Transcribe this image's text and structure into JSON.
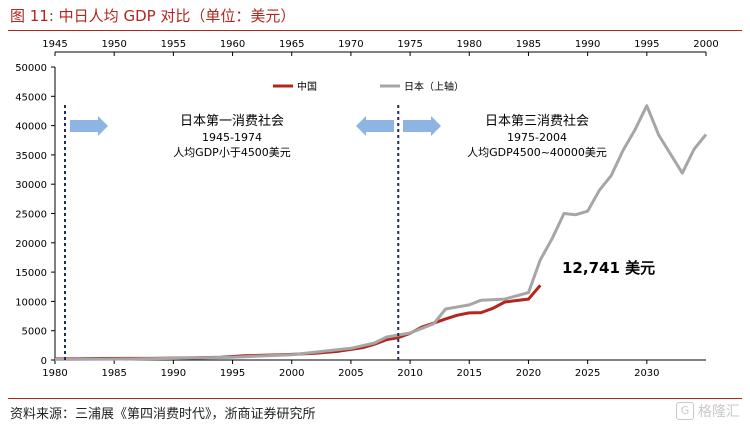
{
  "figure_title": "图 11:   中日人均 GDP 对比（单位：美元）",
  "source": "资料来源：三浦展《第四消费时代》，浙商证券研究所",
  "watermark": {
    "icon": "G",
    "text": "格隆汇"
  },
  "colors": {
    "china": "#b3261e",
    "japan": "#a6a6a6",
    "accent": "#b3261e",
    "arrow": "#8eb4e3",
    "divider": "#1f2a6b"
  },
  "chart_data": {
    "type": "line",
    "title": "",
    "bottom_axis": {
      "min": 1980,
      "max": 2035,
      "ticks": [
        1980,
        1985,
        1990,
        1995,
        2000,
        2005,
        2010,
        2015,
        2020,
        2025,
        2030
      ]
    },
    "top_axis": {
      "min": 1945,
      "max": 2000,
      "ticks": [
        1945,
        1950,
        1955,
        1960,
        1965,
        1970,
        1975,
        1980,
        1985,
        1990,
        1995,
        2000
      ]
    },
    "y_axis": {
      "min": 0,
      "max": 50000,
      "ticks": [
        0,
        5000,
        10000,
        15000,
        20000,
        25000,
        30000,
        35000,
        40000,
        45000,
        50000
      ]
    },
    "legend": {
      "position": "top-center"
    },
    "series": [
      {
        "name": "中国",
        "axis": "bottom",
        "x": [
          1980,
          1982,
          1984,
          1986,
          1988,
          1990,
          1992,
          1994,
          1996,
          1998,
          2000,
          2002,
          2004,
          2006,
          2007,
          2008,
          2009,
          2010,
          2011,
          2012,
          2013,
          2014,
          2015,
          2016,
          2017,
          2018,
          2019,
          2020,
          2021
        ],
        "y": [
          195,
          205,
          250,
          280,
          280,
          320,
          370,
          470,
          710,
          830,
          960,
          1150,
          1500,
          2100,
          2700,
          3470,
          3830,
          4550,
          5610,
          6300,
          7020,
          7650,
          8030,
          8090,
          8820,
          9900,
          10150,
          10400,
          12741
        ]
      },
      {
        "name": "日本（上轴）",
        "axis": "top",
        "x": [
          1945,
          1950,
          1955,
          1960,
          1965,
          1970,
          1972,
          1973,
          1975,
          1977,
          1978,
          1980,
          1981,
          1983,
          1985,
          1986,
          1987,
          1988,
          1989,
          1990,
          1991,
          1992,
          1993,
          1994,
          1995,
          1996,
          1998,
          1999,
          2000
        ],
        "y": [
          100,
          150,
          270,
          480,
          900,
          2000,
          2900,
          3900,
          4600,
          6200,
          8700,
          9400,
          10200,
          10400,
          11500,
          17100,
          20700,
          25000,
          24800,
          25400,
          29000,
          31500,
          35800,
          39300,
          43400,
          38400,
          31900,
          36000,
          38500
        ]
      }
    ],
    "annotations": [
      {
        "title": "日本第一消费社会",
        "years": "1945-1974",
        "note": "人均GDP小于4500美元"
      },
      {
        "title": "日本第三消费社会",
        "years": "1975-2004",
        "note": "人均GDP4500~40000美元"
      },
      {
        "label": "12,741 美元"
      }
    ]
  }
}
